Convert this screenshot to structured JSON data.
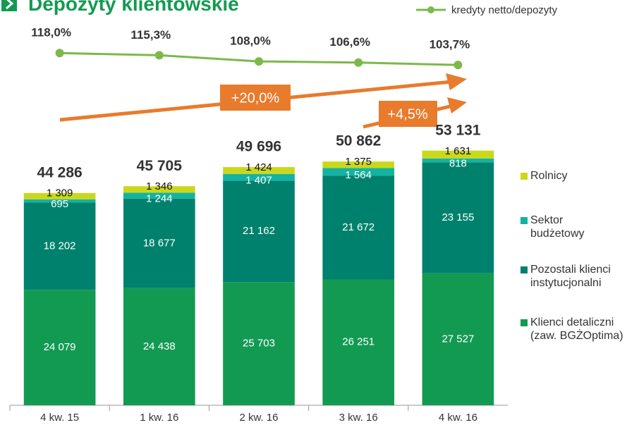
{
  "chart_data": {
    "type": "stacked_bar_line",
    "title": "Depozyty klientowskie",
    "categories": [
      "4 kw. 15",
      "1 kw. 16",
      "2 kw. 16",
      "3 kw. 16",
      "4 kw. 16"
    ],
    "ylim": [
      0,
      80000
    ],
    "series": [
      {
        "name": "Klienci detaliczni (zaw. BGŻOptima)",
        "color": "#139a52",
        "values": [
          24079,
          24438,
          25703,
          26251,
          27527
        ],
        "value_labels": [
          "24 079",
          "24 438",
          "25 703",
          "26 251",
          "27 527"
        ]
      },
      {
        "name": "Pozostali klienci instytucjonalni",
        "color": "#00816d",
        "values": [
          18202,
          18677,
          21162,
          21672,
          23155
        ],
        "value_labels": [
          "18 202",
          "18 677",
          "21 162",
          "21 672",
          "23 155"
        ]
      },
      {
        "name": "Sektor budżetowy",
        "color": "#14b3a1",
        "values": [
          695,
          1244,
          1407,
          1564,
          818
        ],
        "value_labels": [
          "695",
          "1 244",
          "1 407",
          "1 564",
          "818"
        ]
      },
      {
        "name": "Rolnicy",
        "color": "#cad81c",
        "values": [
          1309,
          1346,
          1424,
          1375,
          1631
        ],
        "value_labels": [
          "1 309",
          "1 346",
          "1 424",
          "1 375",
          "1 631"
        ]
      },
      {
        "name": "kredyty netto/depozyty",
        "color": "#7cb84a",
        "axis": "y2",
        "values": [
          118.0,
          115.3,
          108.0,
          106.6,
          103.7
        ],
        "value_labels": [
          "118,0%",
          "115,3%",
          "108,0%",
          "106,6%",
          "103,7%"
        ]
      }
    ],
    "y2lim": [
      60,
      130
    ],
    "totals": {
      "values": [
        44286,
        45705,
        49696,
        50862,
        53131
      ],
      "value_labels": [
        "44 286",
        "45 705",
        "49 696",
        "50 862",
        "53 131"
      ]
    },
    "annotations": [
      "+20,0%",
      "+4,5%"
    ]
  }
}
